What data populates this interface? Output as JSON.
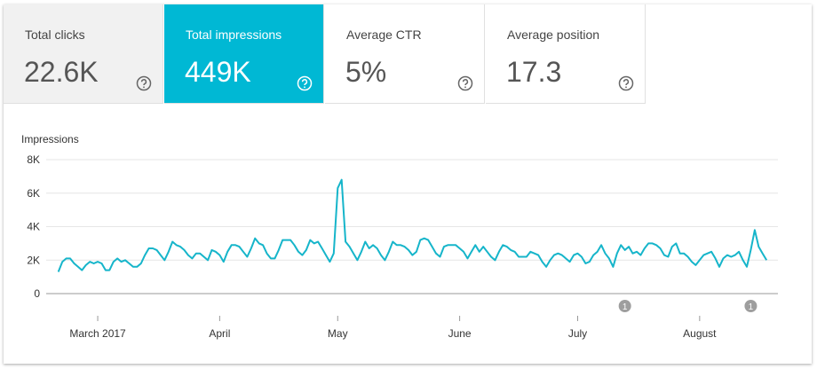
{
  "cards": [
    {
      "label": "Total clicks",
      "value": "22.6K"
    },
    {
      "label": "Total impressions",
      "value": "449K"
    },
    {
      "label": "Average CTR",
      "value": "5%"
    },
    {
      "label": "Average position",
      "value": "17.3"
    }
  ],
  "chart_data": {
    "type": "line",
    "y_label": "Impressions",
    "color": "#16b5ca",
    "grid": true,
    "x": [
      -10,
      -9,
      -8,
      -7,
      -6,
      -5,
      -4,
      -3,
      -2,
      -1,
      0,
      1,
      2,
      3,
      4,
      5,
      6,
      7,
      8,
      9,
      10,
      11,
      12,
      13,
      14,
      15,
      16,
      17,
      18,
      19,
      20,
      21,
      22,
      23,
      24,
      25,
      26,
      27,
      28,
      29,
      30,
      31,
      32,
      33,
      34,
      35,
      36,
      37,
      38,
      39,
      40,
      41,
      42,
      43,
      44,
      45,
      46,
      47,
      48,
      49,
      50,
      51,
      52,
      53,
      54,
      55,
      56,
      57,
      58,
      59,
      60,
      61,
      62,
      63,
      64,
      65,
      66,
      67,
      68,
      69,
      70,
      71,
      72,
      73,
      74,
      75,
      76,
      77,
      78,
      79,
      80,
      81,
      82,
      83,
      84,
      85,
      86,
      87,
      88,
      89,
      90,
      91,
      92,
      93,
      94,
      95,
      96,
      97,
      98,
      99,
      100,
      101,
      102,
      103,
      104,
      105,
      106,
      107,
      108,
      109,
      110,
      111,
      112,
      113,
      114,
      115,
      116,
      117,
      118,
      119,
      120,
      121,
      122,
      123,
      124,
      125,
      126,
      127,
      128,
      129,
      130,
      131,
      132,
      133,
      134,
      135,
      136,
      137,
      138,
      139,
      140,
      141,
      142,
      143,
      144,
      145,
      146,
      147,
      148,
      149,
      150,
      151,
      152,
      153,
      154,
      155,
      156,
      157,
      158,
      159,
      160,
      161,
      162,
      163,
      164,
      165,
      166,
      167,
      168,
      169,
      170
    ],
    "values": [
      1300,
      1900,
      2100,
      2100,
      1800,
      1600,
      1400,
      1700,
      1900,
      1800,
      1900,
      1800,
      1400,
      1400,
      1900,
      2100,
      1900,
      2000,
      1800,
      1600,
      1600,
      1800,
      2300,
      2700,
      2700,
      2600,
      2300,
      2000,
      2500,
      3100,
      2900,
      2800,
      2600,
      2300,
      2100,
      2400,
      2400,
      2200,
      2000,
      2600,
      2500,
      2300,
      1900,
      2500,
      2900,
      2900,
      2800,
      2500,
      2200,
      2700,
      3300,
      3000,
      2900,
      2400,
      2100,
      2100,
      2600,
      3200,
      3200,
      3200,
      2900,
      2500,
      2300,
      2600,
      3200,
      3000,
      3100,
      2700,
      2300,
      1900,
      2400,
      6300,
      6800,
      3100,
      2800,
      2400,
      2000,
      2500,
      3100,
      2700,
      2900,
      2700,
      2300,
      2000,
      2500,
      3100,
      2900,
      2900,
      2800,
      2600,
      2300,
      2500,
      3200,
      3300,
      3200,
      2800,
      2400,
      2200,
      2800,
      2900,
      2900,
      2900,
      2700,
      2500,
      2100,
      2500,
      2900,
      2500,
      2800,
      2500,
      2200,
      2000,
      2500,
      2900,
      2800,
      2600,
      2500,
      2200,
      2200,
      2200,
      2500,
      2400,
      2300,
      1900,
      1600,
      2000,
      2300,
      2400,
      2300,
      2100,
      1900,
      2300,
      2400,
      2200,
      1800,
      1900,
      2300,
      2500,
      2900,
      2400,
      2100,
      1600,
      2400,
      2900,
      2600,
      2800,
      2400,
      2500,
      2300,
      2700,
      3000,
      3000,
      2900,
      2700,
      2300,
      2200,
      2800,
      3000,
      2400,
      2400,
      2200,
      1900,
      1700,
      2000,
      2300,
      2400,
      2500,
      2100,
      1600,
      2100,
      2300,
      2200,
      2300,
      2500,
      2000,
      1600,
      2600,
      3800,
      2800,
      2400,
      2000
    ],
    "xlim": [
      -13.1,
      172.9
    ],
    "xticks": [
      {
        "value": 0,
        "label": "March 2017"
      },
      {
        "value": 31,
        "label": "April"
      },
      {
        "value": 61,
        "label": "May"
      },
      {
        "value": 92,
        "label": "June"
      },
      {
        "value": 122,
        "label": "July"
      },
      {
        "value": 153,
        "label": "August"
      }
    ],
    "ylim": [
      0,
      8000
    ],
    "yticks": [
      0,
      {
        "value": 2000,
        "label": "2K"
      },
      {
        "value": 4000,
        "label": "4K"
      },
      {
        "value": 6000,
        "label": "6K"
      },
      {
        "value": 8000,
        "label": "8K"
      }
    ],
    "annotations": [
      {
        "x": 134,
        "label": "1"
      },
      {
        "x": 166,
        "label": "1"
      }
    ]
  }
}
